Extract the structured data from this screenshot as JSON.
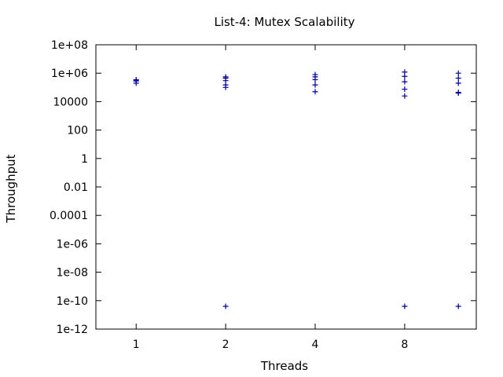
{
  "chart_data": {
    "type": "scatter",
    "title": "List-4: Mutex Scalability",
    "xlabel": "Threads",
    "ylabel": "Throughput",
    "x_ticks": [
      {
        "pos": 1,
        "label": "1"
      },
      {
        "pos": 2,
        "label": "2"
      },
      {
        "pos": 3,
        "label": "4"
      },
      {
        "pos": 4,
        "label": "8"
      }
    ],
    "xlim": [
      0.55,
      4.8
    ],
    "y_scale": "log",
    "ylim": [
      1e-12,
      100000000.0
    ],
    "y_ticks": [
      {
        "value": 100000000.0,
        "label": "1e+08"
      },
      {
        "value": 1000000.0,
        "label": "1e+06"
      },
      {
        "value": 10000.0,
        "label": "10000"
      },
      {
        "value": 100.0,
        "label": "100"
      },
      {
        "value": 1,
        "label": "1"
      },
      {
        "value": 0.01,
        "label": "0.01"
      },
      {
        "value": 0.0001,
        "label": "0.0001"
      },
      {
        "value": 1e-06,
        "label": "1e-06"
      },
      {
        "value": 1e-08,
        "label": "1e-08"
      },
      {
        "value": 1e-10,
        "label": "1e-10"
      },
      {
        "value": 1e-12,
        "label": "1e-12"
      }
    ],
    "grid": false,
    "legend": "none",
    "marker": "+",
    "marker_color": "#0000a0",
    "points": [
      {
        "x": 1,
        "y": 350000
      },
      {
        "x": 1,
        "y": 300000
      },
      {
        "x": 1,
        "y": 280000
      },
      {
        "x": 1,
        "y": 200000
      },
      {
        "x": 2,
        "y": 550000
      },
      {
        "x": 2,
        "y": 450000
      },
      {
        "x": 2,
        "y": 300000
      },
      {
        "x": 2,
        "y": 150000
      },
      {
        "x": 2,
        "y": 100000
      },
      {
        "x": 2,
        "y": 4e-11
      },
      {
        "x": 3,
        "y": 800000
      },
      {
        "x": 3,
        "y": 550000
      },
      {
        "x": 3,
        "y": 350000
      },
      {
        "x": 3,
        "y": 150000
      },
      {
        "x": 3,
        "y": 50000
      },
      {
        "x": 4,
        "y": 1200000
      },
      {
        "x": 4,
        "y": 600000
      },
      {
        "x": 4,
        "y": 250000
      },
      {
        "x": 4,
        "y": 75000
      },
      {
        "x": 4,
        "y": 25000
      },
      {
        "x": 4,
        "y": 4e-11
      },
      {
        "x": 4.6,
        "y": 1000000
      },
      {
        "x": 4.6,
        "y": 450000
      },
      {
        "x": 4.6,
        "y": 200000
      },
      {
        "x": 4.6,
        "y": 45000
      },
      {
        "x": 4.6,
        "y": 40000
      },
      {
        "x": 4.6,
        "y": 4e-11
      }
    ]
  }
}
